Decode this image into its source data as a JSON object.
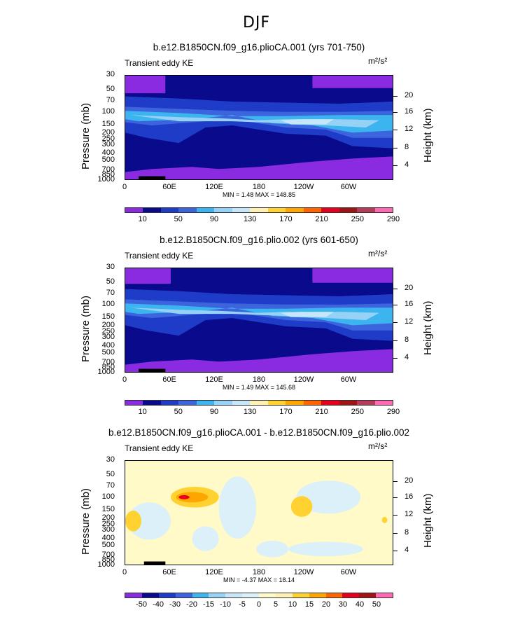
{
  "figure": {
    "title": "DJF"
  },
  "axes": {
    "pressure_ticks": [
      "30",
      "50",
      "70",
      "100",
      "150",
      "200",
      "250",
      "300",
      "400",
      "500",
      "700",
      "850",
      "1000"
    ],
    "height_ticks": [
      "20",
      "16",
      "12",
      "8",
      "4"
    ],
    "lon_ticks": [
      "0",
      "60E",
      "120E",
      "180",
      "120W",
      "60W"
    ],
    "ylabel_left": "Pressure (mb)",
    "ylabel_right": "Height (km)",
    "units": "m²/s²"
  },
  "chart_data": [
    {
      "type": "heatmap",
      "title": "b.e12.B1850CN.f09_g16.plioCA.001 (yrs 701-750)",
      "variable": "Transient eddy KE",
      "units": "m²/s²",
      "xlabel": "",
      "ylabel": "Pressure (mb)",
      "ylabel_right": "Height (km)",
      "min_label": "MIN =    1.48   MAX =  148.85",
      "min": 1.48,
      "max": 148.85,
      "colorbar_labels": [
        "10",
        "50",
        "90",
        "130",
        "170",
        "210",
        "250",
        "290"
      ],
      "colorbar_colors": [
        "#8a2be2",
        "#0a0a8c",
        "#1e3cc8",
        "#3c64dc",
        "#3cb4f0",
        "#96d2f5",
        "#c8e6fa",
        "#fff0b4",
        "#ffd232",
        "#ffa500",
        "#ff6400",
        "#e6001e",
        "#a01414",
        "#b43c5a",
        "#ff69b4"
      ]
    },
    {
      "type": "heatmap",
      "title": "b.e12.B1850CN.f09_g16.plio.002 (yrs 601-650)",
      "variable": "Transient eddy KE",
      "units": "m²/s²",
      "xlabel": "",
      "ylabel": "Pressure (mb)",
      "ylabel_right": "Height (km)",
      "min_label": "MIN =    1.49   MAX =  145.68",
      "min": 1.49,
      "max": 145.68,
      "colorbar_labels": [
        "10",
        "50",
        "90",
        "130",
        "170",
        "210",
        "250",
        "290"
      ],
      "colorbar_colors": [
        "#8a2be2",
        "#0a0a8c",
        "#1e3cc8",
        "#3c64dc",
        "#3cb4f0",
        "#96d2f5",
        "#c8e6fa",
        "#fff0b4",
        "#ffd232",
        "#ffa500",
        "#ff6400",
        "#e6001e",
        "#a01414",
        "#b43c5a",
        "#ff69b4"
      ]
    },
    {
      "type": "heatmap",
      "title": "b.e12.B1850CN.f09_g16.plioCA.001 - b.e12.B1850CN.f09_g16.plio.002",
      "variable": "Transient eddy KE",
      "units": "m²/s²",
      "xlabel": "",
      "ylabel": "Pressure (mb)",
      "ylabel_right": "Height (km)",
      "min_label": "MIN =   -4.37   MAX =   18.14",
      "min": -4.37,
      "max": 18.14,
      "colorbar_labels": [
        "-50",
        "-40",
        "-30",
        "-20",
        "-15",
        "-10",
        "-5",
        "0",
        "5",
        "10",
        "15",
        "20",
        "30",
        "40",
        "50"
      ],
      "colorbar_colors": [
        "#8a2be2",
        "#0a0a8c",
        "#1e3cc8",
        "#3c64dc",
        "#3cb4f0",
        "#96d2f5",
        "#c8e6fa",
        "#dcf0fa",
        "#fffac8",
        "#fff0b4",
        "#ffd232",
        "#ffa500",
        "#ff6400",
        "#e6001e",
        "#a01414",
        "#ff69b4"
      ]
    }
  ]
}
